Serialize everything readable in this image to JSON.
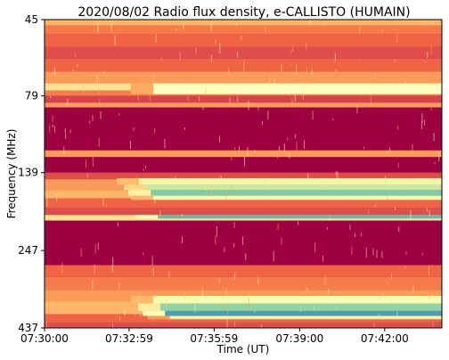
{
  "chart_data": {
    "type": "heatmap",
    "title": "2020/08/02  Radio flux density, e-CALLISTO (HUMAIN)",
    "xlabel": "Time (UT)",
    "ylabel": "Frequency (MHz)",
    "x_tick_labels": [
      "07:30:00",
      "07:32:59",
      "07:35:59",
      "07:39:00",
      "07:42:00"
    ],
    "y_tick_labels": [
      "45",
      "79",
      "139",
      "247",
      "437"
    ],
    "y_tick_values": [
      45,
      79,
      139,
      247,
      437
    ],
    "y_scale": "log",
    "y_range": [
      45,
      437
    ],
    "y_inverted": true,
    "x_range_seconds": [
      0,
      841
    ],
    "x_tick_seconds": [
      0,
      179,
      359,
      540,
      720
    ],
    "colormap": [
      "#9e0142",
      "#d53e4f",
      "#f46d43",
      "#fdae61",
      "#fee08b",
      "#ffffbf",
      "#e6f598",
      "#abdda4",
      "#66c2a5",
      "#3288bd"
    ],
    "bands": [
      {
        "from_mhz": 45,
        "to_mhz": 47,
        "level": 0.35
      },
      {
        "from_mhz": 47,
        "to_mhz": 50,
        "level": 0.25
      },
      {
        "from_mhz": 50,
        "to_mhz": 55,
        "level": 0.2
      },
      {
        "from_mhz": 55,
        "to_mhz": 60,
        "level": 0.15
      },
      {
        "from_mhz": 60,
        "to_mhz": 66,
        "level": 0.2
      },
      {
        "from_mhz": 66,
        "to_mhz": 72,
        "level": 0.3
      },
      {
        "from_mhz": 72,
        "to_mhz": 76,
        "level": 0.45
      },
      {
        "from_mhz": 76,
        "to_mhz": 79,
        "level": 0.25
      },
      {
        "from_mhz": 79,
        "to_mhz": 83,
        "level": 0.12
      },
      {
        "from_mhz": 83,
        "to_mhz": 86,
        "level": 0.3
      },
      {
        "from_mhz": 86,
        "to_mhz": 118,
        "level": 0.0
      },
      {
        "from_mhz": 118,
        "to_mhz": 124,
        "level": 0.3
      },
      {
        "from_mhz": 124,
        "to_mhz": 139,
        "level": 0.0
      },
      {
        "from_mhz": 139,
        "to_mhz": 146,
        "level": 0.15
      },
      {
        "from_mhz": 146,
        "to_mhz": 158,
        "level": 0.3
      },
      {
        "from_mhz": 158,
        "to_mhz": 168,
        "level": 0.35
      },
      {
        "from_mhz": 168,
        "to_mhz": 180,
        "level": 0.2
      },
      {
        "from_mhz": 180,
        "to_mhz": 190,
        "level": 0.15
      },
      {
        "from_mhz": 190,
        "to_mhz": 198,
        "level": 0.45
      },
      {
        "from_mhz": 198,
        "to_mhz": 247,
        "level": 0.0
      },
      {
        "from_mhz": 247,
        "to_mhz": 275,
        "level": 0.0
      },
      {
        "from_mhz": 275,
        "to_mhz": 300,
        "level": 0.2
      },
      {
        "from_mhz": 300,
        "to_mhz": 330,
        "level": 0.25
      },
      {
        "from_mhz": 330,
        "to_mhz": 360,
        "level": 0.3
      },
      {
        "from_mhz": 360,
        "to_mhz": 395,
        "level": 0.35
      },
      {
        "from_mhz": 395,
        "to_mhz": 420,
        "level": 0.2
      },
      {
        "from_mhz": 420,
        "to_mhz": 437,
        "level": 0.15
      }
    ],
    "enhancements": [
      {
        "from_mhz": 72,
        "to_mhz": 78,
        "start_s": 230,
        "level": 0.55
      },
      {
        "from_mhz": 145,
        "to_mhz": 152,
        "start_s": 200,
        "level": 0.62
      },
      {
        "from_mhz": 152,
        "to_mhz": 158,
        "start_s": 215,
        "level": 0.72
      },
      {
        "from_mhz": 158,
        "to_mhz": 165,
        "start_s": 225,
        "level": 0.85
      },
      {
        "from_mhz": 165,
        "to_mhz": 170,
        "start_s": 230,
        "level": 0.6
      },
      {
        "from_mhz": 190,
        "to_mhz": 195,
        "start_s": 240,
        "level": 0.9
      },
      {
        "from_mhz": 345,
        "to_mhz": 365,
        "start_s": 230,
        "level": 0.6
      },
      {
        "from_mhz": 365,
        "to_mhz": 385,
        "start_s": 245,
        "level": 0.82
      },
      {
        "from_mhz": 385,
        "to_mhz": 400,
        "start_s": 255,
        "level": 0.95
      },
      {
        "from_mhz": 400,
        "to_mhz": 410,
        "start_s": 265,
        "level": 0.5
      }
    ]
  }
}
